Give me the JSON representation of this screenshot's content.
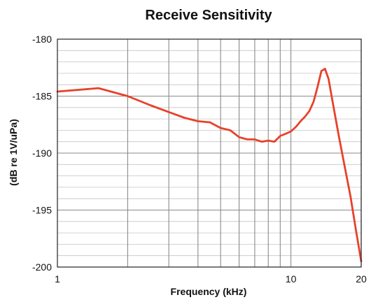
{
  "chart_data": {
    "type": "line",
    "title": "Receive Sensitivity",
    "xlabel": "Frequency (kHz)",
    "ylabel": "(dB re 1V/uPa)",
    "x_scale": "log",
    "xlim": [
      1,
      20
    ],
    "ylim": [
      -200,
      -180
    ],
    "x_ticks": [
      1,
      10,
      20
    ],
    "x_tick_labels": [
      "1",
      "10",
      "20"
    ],
    "y_ticks": [
      -180,
      -185,
      -190,
      -195,
      -200
    ],
    "y_tick_labels": [
      "-180",
      "-185",
      "-190",
      "-195",
      "-200"
    ],
    "grid": true,
    "series": [
      {
        "color": "#e8412b",
        "x": [
          1,
          1.5,
          2,
          2.5,
          3,
          3.5,
          4,
          4.5,
          5,
          5.5,
          6,
          6.5,
          7,
          7.5,
          8,
          8.5,
          9,
          9.5,
          10,
          10.5,
          11,
          11.5,
          12,
          12.5,
          13,
          13.5,
          14,
          14.5,
          15,
          16,
          17,
          18,
          19,
          20
        ],
        "y": [
          -184.6,
          -184.3,
          -185.0,
          -185.8,
          -186.4,
          -186.9,
          -187.2,
          -187.3,
          -187.8,
          -188.0,
          -188.6,
          -188.8,
          -188.8,
          -189.0,
          -188.9,
          -189.0,
          -188.5,
          -188.3,
          -188.1,
          -187.7,
          -187.2,
          -186.8,
          -186.3,
          -185.5,
          -184.2,
          -182.8,
          -182.6,
          -183.5,
          -185.2,
          -188.4,
          -191.2,
          -193.8,
          -196.8,
          -199.5
        ]
      }
    ]
  }
}
